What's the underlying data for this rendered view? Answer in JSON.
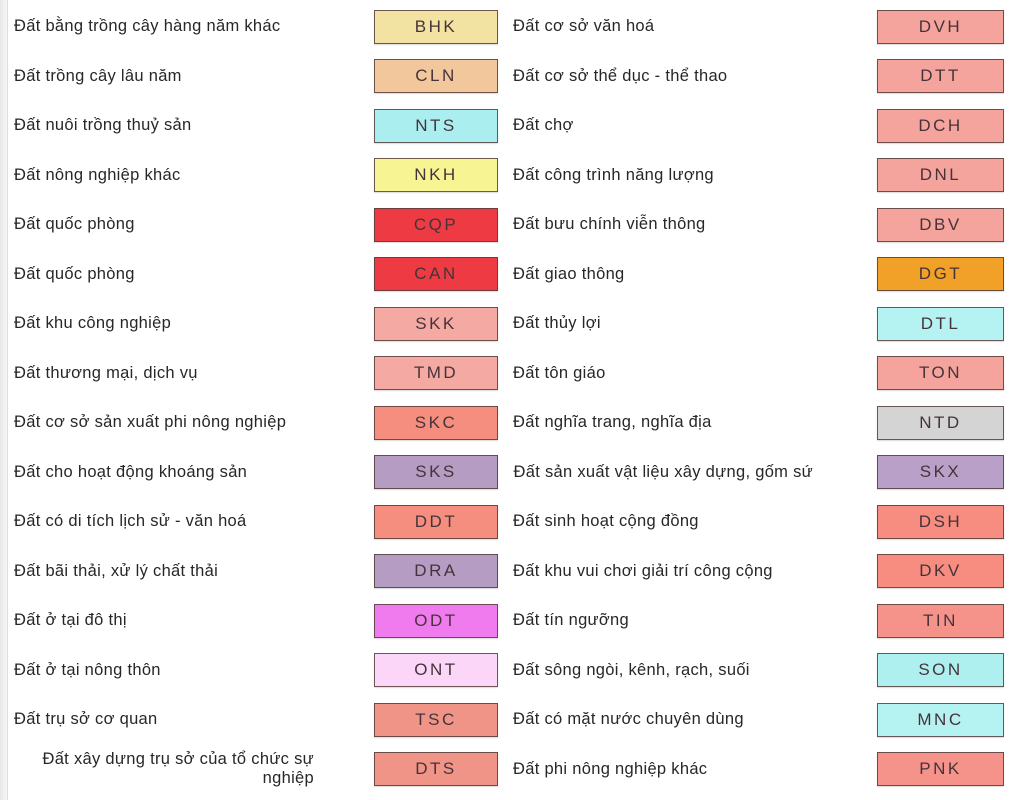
{
  "legend": {
    "rows": [
      {
        "left": {
          "label": "Đất bằng trồng cây hàng năm khác",
          "code": "BHK",
          "color": "#f2e3a3"
        },
        "right": {
          "label": "Đất cơ sở văn hoá",
          "code": "DVH",
          "color": "#f4a49c"
        }
      },
      {
        "left": {
          "label": "Đất trồng cây lâu năm",
          "code": "CLN",
          "color": "#f3c79c"
        },
        "right": {
          "label": "Đất cơ sở thể dục - thể thao",
          "code": "DTT",
          "color": "#f4a49c"
        }
      },
      {
        "left": {
          "label": "Đất nuôi trồng thuỷ sản",
          "code": "NTS",
          "color": "#aaeef0"
        },
        "right": {
          "label": "Đất chợ",
          "code": "DCH",
          "color": "#f4a49c"
        }
      },
      {
        "left": {
          "label": "Đất nông nghiệp khác",
          "code": "NKH",
          "color": "#f7f493"
        },
        "right": {
          "label": "Đất công trình năng lượng",
          "code": "DNL",
          "color": "#f4a49c"
        }
      },
      {
        "left": {
          "label": "Đất quốc phòng",
          "code": "CQP",
          "color": "#ee3b43"
        },
        "right": {
          "label": "Đất bưu chính viễn thông",
          "code": "DBV",
          "color": "#f4a49c"
        }
      },
      {
        "left": {
          "label": "Đất quốc phòng",
          "code": "CAN",
          "color": "#ee3b43"
        },
        "right": {
          "label": "Đất giao thông",
          "code": "DGT",
          "color": "#f2a128"
        }
      },
      {
        "left": {
          "label": "Đất khu công nghiệp",
          "code": "SKK",
          "color": "#f4aaa2"
        },
        "right": {
          "label": "Đất thủy lợi",
          "code": "DTL",
          "color": "#b5f2f2"
        }
      },
      {
        "left": {
          "label": "Đất thương mại, dịch vụ",
          "code": "TMD",
          "color": "#f4aaa2"
        },
        "right": {
          "label": "Đất tôn giáo",
          "code": "TON",
          "color": "#f4a49c"
        }
      },
      {
        "left": {
          "label": "Đất cơ sở sản xuất phi nông nghiệp",
          "code": "SKC",
          "color": "#f58e7e"
        },
        "right": {
          "label": "Đất nghĩa trang, nghĩa địa",
          "code": "NTD",
          "color": "#d4d4d4"
        }
      },
      {
        "left": {
          "label": "Đất cho hoạt động khoáng sản",
          "code": "SKS",
          "color": "#b49cc3"
        },
        "right": {
          "label": "Đất sản xuất vật liệu xây dựng, gốm sứ",
          "code": "SKX",
          "color": "#b9a0c8"
        }
      },
      {
        "left": {
          "label": "Đất có di tích lịch sử - văn hoá",
          "code": "DDT",
          "color": "#f58e7e"
        },
        "right": {
          "label": "Đất sinh hoạt cộng đồng",
          "code": "DSH",
          "color": "#f68d80"
        }
      },
      {
        "left": {
          "label": "Đất bãi thải, xử lý chất thải",
          "code": "DRA",
          "color": "#b49cc3"
        },
        "right": {
          "label": "Đất khu vui chơi giải trí công cộng",
          "code": "DKV",
          "color": "#f68d80"
        }
      },
      {
        "left": {
          "label": "Đất ở tại đô thị",
          "code": "ODT",
          "color": "#ef7bee"
        },
        "right": {
          "label": "Đất tín ngưỡng",
          "code": "TIN",
          "color": "#f5938b"
        }
      },
      {
        "left": {
          "label": "Đất ở tại nông thôn",
          "code": "ONT",
          "color": "#fbd6f9"
        },
        "right": {
          "label": "Đất sông ngòi, kênh, rạch, suối",
          "code": "SON",
          "color": "#aef0f0"
        }
      },
      {
        "left": {
          "label": "Đất trụ sở cơ quan",
          "code": "TSC",
          "color": "#ef9486"
        },
        "right": {
          "label": "Đất có mặt nước chuyên dùng",
          "code": "MNC",
          "color": "#b5f2f2"
        }
      },
      {
        "left": {
          "label": "Đất xây dựng trụ sở của tổ chức sự nghiệp",
          "code": "DTS",
          "color": "#ef9486"
        },
        "right": {
          "label": "Đất phi nông nghiệp khác",
          "code": "PNK",
          "color": "#f5938b"
        }
      }
    ]
  }
}
